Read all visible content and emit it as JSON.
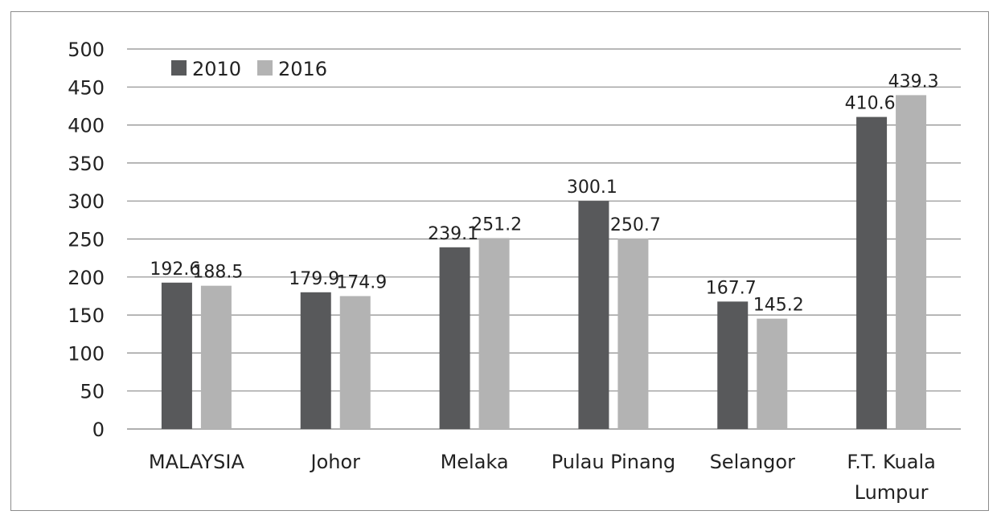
{
  "chart_data": {
    "type": "bar",
    "title": "",
    "xlabel": "",
    "ylabel": "",
    "ylim": [
      0,
      500
    ],
    "yticks": [
      0,
      50,
      100,
      150,
      200,
      250,
      300,
      350,
      400,
      450,
      500
    ],
    "grid": true,
    "legend_position": "top-left",
    "categories": [
      [
        "MALAYSIA"
      ],
      [
        "Johor"
      ],
      [
        "Melaka"
      ],
      [
        "Pulau Pinang"
      ],
      [
        "Selangor"
      ],
      [
        "F.T. Kuala",
        "Lumpur"
      ]
    ],
    "series": [
      {
        "name": "2010",
        "color": "#58595b",
        "values": [
          192.6,
          179.9,
          239.1,
          300.1,
          167.7,
          410.6
        ]
      },
      {
        "name": "2016",
        "color": "#b3b3b3",
        "values": [
          188.5,
          174.9,
          251.2,
          250.7,
          145.2,
          439.3
        ]
      }
    ],
    "data_labels": true
  }
}
